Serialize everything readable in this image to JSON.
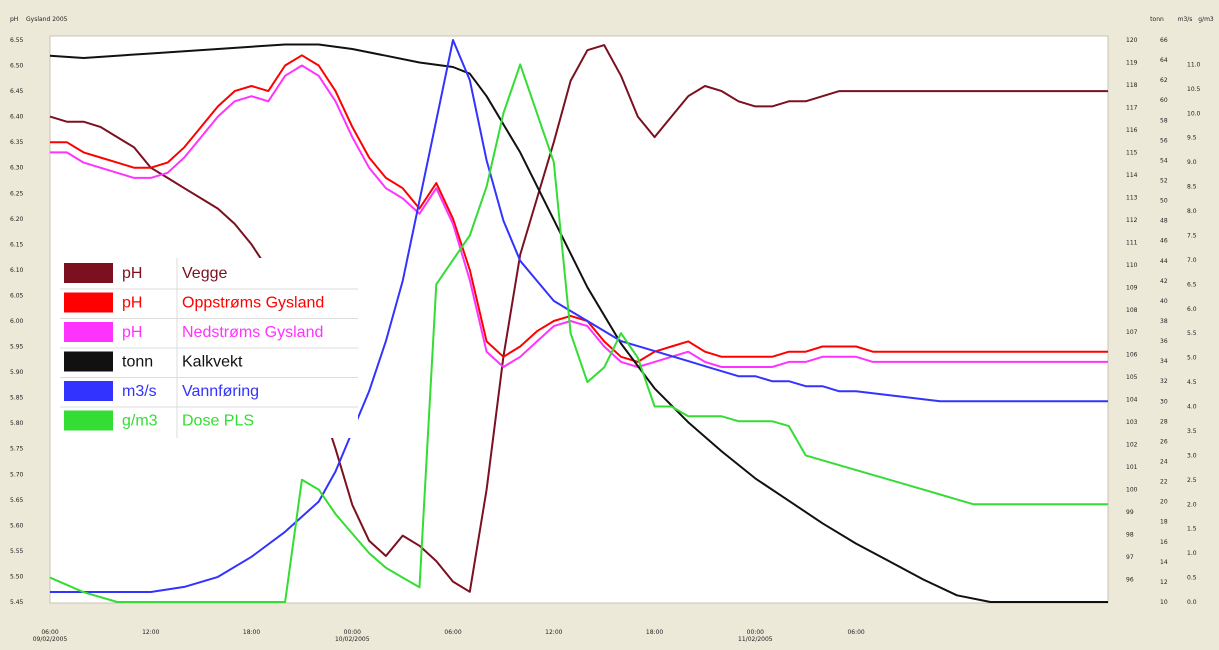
{
  "chart_data": {
    "type": "line",
    "title": "Gysland 2005",
    "left_axis": {
      "unit": "pH",
      "range": [
        5.45,
        6.55
      ],
      "ticks": [
        "6.55",
        "6.50",
        "6.45",
        "6.40",
        "6.35",
        "6.30",
        "6.25",
        "6.20",
        "6.15",
        "6.10",
        "6.05",
        "6.00",
        "5.95",
        "5.90",
        "5.85",
        "5.80",
        "5.75",
        "5.70",
        "5.65",
        "5.60",
        "5.55",
        "5.50",
        "5.45"
      ]
    },
    "right_axes": [
      {
        "unit": "tonn",
        "range": [
          95,
          120
        ],
        "ticks": [
          "120",
          "119",
          "118",
          "117",
          "116",
          "115",
          "114",
          "113",
          "112",
          "111",
          "110",
          "109",
          "108",
          "107",
          "106",
          "105",
          "104",
          "103",
          "102",
          "101",
          "100",
          "99",
          "98",
          "97",
          "96"
        ]
      },
      {
        "unit": "m3/s",
        "range": [
          10,
          66
        ],
        "ticks": [
          "66",
          "64",
          "62",
          "60",
          "58",
          "56",
          "54",
          "52",
          "50",
          "48",
          "46",
          "44",
          "42",
          "40",
          "38",
          "36",
          "34",
          "32",
          "30",
          "28",
          "26",
          "24",
          "22",
          "20",
          "18",
          "16",
          "14",
          "12",
          "10"
        ]
      },
      {
        "unit": "g/m3",
        "range": [
          0,
          11.5
        ],
        "ticks": [
          "11.0",
          "10.5",
          "10.0",
          "9.5",
          "9.0",
          "8.5",
          "8.0",
          "7.5",
          "7.0",
          "6.5",
          "6.0",
          "5.5",
          "5.0",
          "4.5",
          "4.0",
          "3.5",
          "3.0",
          "2.5",
          "2.0",
          "1.5",
          "1.0",
          "0.5",
          "0.0"
        ]
      }
    ],
    "x_axis": {
      "range_hours": [
        0,
        63
      ],
      "ticks": [
        {
          "h": 0,
          "lines": [
            "06:00",
            "09/02/2005"
          ]
        },
        {
          "h": 6,
          "lines": [
            "12:00"
          ]
        },
        {
          "h": 12,
          "lines": [
            "18:00"
          ]
        },
        {
          "h": 18,
          "lines": [
            "00:00",
            "10/02/2005"
          ]
        },
        {
          "h": 24,
          "lines": [
            "06:00"
          ]
        },
        {
          "h": 30,
          "lines": [
            "12:00"
          ]
        },
        {
          "h": 36,
          "lines": [
            "18:00"
          ]
        },
        {
          "h": 42,
          "lines": [
            "00:00",
            "11/02/2005"
          ]
        },
        {
          "h": 48,
          "lines": [
            "06:00"
          ]
        }
      ]
    },
    "series": [
      {
        "unit": "pH",
        "name": "Vegge",
        "color": "#7b1020",
        "axis": "pH",
        "x": [
          0,
          1,
          2,
          3,
          4,
          5,
          6,
          7,
          8,
          9,
          10,
          11,
          12,
          13,
          14,
          15,
          16,
          17,
          18,
          19,
          20,
          21,
          22,
          23,
          24,
          25,
          26,
          27,
          28,
          29,
          30,
          31,
          32,
          33,
          34,
          35,
          36,
          37,
          38,
          39,
          40,
          41,
          42,
          43,
          44,
          45,
          46,
          47,
          48,
          49,
          50,
          51,
          52,
          53,
          54,
          55,
          56,
          57,
          58,
          59,
          60,
          61,
          62,
          63
        ],
        "y": [
          6.4,
          6.39,
          6.39,
          6.38,
          6.36,
          6.34,
          6.3,
          6.28,
          6.26,
          6.24,
          6.22,
          6.19,
          6.15,
          6.1,
          6.03,
          5.94,
          5.85,
          5.75,
          5.64,
          5.57,
          5.54,
          5.58,
          5.56,
          5.53,
          5.49,
          5.47,
          5.67,
          5.93,
          6.13,
          6.24,
          6.35,
          6.47,
          6.53,
          6.54,
          6.48,
          6.4,
          6.36,
          6.4,
          6.44,
          6.46,
          6.45,
          6.43,
          6.42,
          6.42,
          6.43,
          6.43,
          6.44,
          6.45,
          6.45,
          6.45,
          6.45,
          6.45,
          6.45,
          6.45,
          6.45,
          6.45,
          6.45,
          6.45,
          6.45,
          6.45,
          6.45,
          6.45,
          6.45,
          6.45
        ]
      },
      {
        "unit": "pH",
        "name": "Oppstrøms Gysland",
        "color": "#ff0000",
        "axis": "pH",
        "x": [
          0,
          1,
          2,
          3,
          4,
          5,
          6,
          7,
          8,
          9,
          10,
          11,
          12,
          13,
          14,
          15,
          16,
          17,
          18,
          19,
          20,
          21,
          22,
          23,
          24,
          25,
          26,
          27,
          28,
          29,
          30,
          31,
          32,
          33,
          34,
          35,
          36,
          37,
          38,
          39,
          40,
          41,
          42,
          43,
          44,
          45,
          46,
          47,
          48,
          49,
          50,
          51,
          52,
          53,
          54,
          55,
          56,
          57,
          58,
          59,
          60,
          61,
          62,
          63
        ],
        "y": [
          6.35,
          6.35,
          6.33,
          6.32,
          6.31,
          6.3,
          6.3,
          6.31,
          6.34,
          6.38,
          6.42,
          6.45,
          6.46,
          6.45,
          6.5,
          6.52,
          6.5,
          6.45,
          6.38,
          6.32,
          6.28,
          6.26,
          6.22,
          6.27,
          6.2,
          6.1,
          5.96,
          5.93,
          5.95,
          5.98,
          6.0,
          6.01,
          6.0,
          5.96,
          5.93,
          5.92,
          5.94,
          5.95,
          5.96,
          5.94,
          5.93,
          5.93,
          5.93,
          5.93,
          5.94,
          5.94,
          5.95,
          5.95,
          5.95,
          5.94,
          5.94,
          5.94,
          5.94,
          5.94,
          5.94,
          5.94,
          5.94,
          5.94,
          5.94,
          5.94,
          5.94,
          5.94,
          5.94,
          5.94
        ]
      },
      {
        "unit": "pH",
        "name": "Nedstrøms Gysland",
        "color": "#ff33ff",
        "axis": "pH",
        "x": [
          0,
          1,
          2,
          3,
          4,
          5,
          6,
          7,
          8,
          9,
          10,
          11,
          12,
          13,
          14,
          15,
          16,
          17,
          18,
          19,
          20,
          21,
          22,
          23,
          24,
          25,
          26,
          27,
          28,
          29,
          30,
          31,
          32,
          33,
          34,
          35,
          36,
          37,
          38,
          39,
          40,
          41,
          42,
          43,
          44,
          45,
          46,
          47,
          48,
          49,
          50,
          51,
          52,
          53,
          54,
          55,
          56,
          57,
          58,
          59,
          60,
          61,
          62,
          63
        ],
        "y": [
          6.33,
          6.33,
          6.31,
          6.3,
          6.29,
          6.28,
          6.28,
          6.29,
          6.32,
          6.36,
          6.4,
          6.43,
          6.44,
          6.43,
          6.48,
          6.5,
          6.48,
          6.43,
          6.36,
          6.3,
          6.26,
          6.24,
          6.21,
          6.26,
          6.19,
          6.08,
          5.94,
          5.91,
          5.93,
          5.96,
          5.99,
          6.0,
          5.99,
          5.95,
          5.92,
          5.91,
          5.92,
          5.93,
          5.94,
          5.92,
          5.91,
          5.91,
          5.91,
          5.91,
          5.92,
          5.92,
          5.93,
          5.93,
          5.93,
          5.92,
          5.92,
          5.92,
          5.92,
          5.92,
          5.92,
          5.92,
          5.92,
          5.92,
          5.92,
          5.92,
          5.92,
          5.92,
          5.92,
          5.92
        ]
      },
      {
        "unit": "tonn",
        "name": "Kalkvekt",
        "color": "#111111",
        "axis": "tonn",
        "x": [
          0,
          2,
          4,
          6,
          8,
          10,
          12,
          14,
          16,
          18,
          20,
          22,
          24,
          25,
          26,
          28,
          30,
          32,
          34,
          36,
          38,
          40,
          42,
          44,
          46,
          48,
          50,
          52,
          54,
          56,
          58,
          60,
          62,
          63
        ],
        "y": [
          119.3,
          119.2,
          119.3,
          119.4,
          119.5,
          119.6,
          119.7,
          119.8,
          119.8,
          119.6,
          119.3,
          119.0,
          118.8,
          118.5,
          117.5,
          115.0,
          112.0,
          109.0,
          106.5,
          104.5,
          103.0,
          101.7,
          100.5,
          99.5,
          98.5,
          97.6,
          96.8,
          96.0,
          95.3,
          95.0,
          95.0,
          95.0,
          95.0,
          95.0
        ]
      },
      {
        "unit": "m3/s",
        "name": "Vannføring",
        "color": "#3333ff",
        "axis": "m3/s",
        "x": [
          0,
          2,
          4,
          6,
          8,
          10,
          12,
          14,
          16,
          17,
          18,
          19,
          20,
          21,
          22,
          23,
          24,
          25,
          26,
          27,
          28,
          29,
          30,
          31,
          32,
          33,
          34,
          35,
          36,
          37,
          38,
          39,
          40,
          41,
          42,
          43,
          44,
          45,
          46,
          47,
          48,
          49,
          50,
          51,
          52,
          53,
          54,
          55,
          56,
          57,
          58,
          59,
          60,
          61,
          62,
          63
        ],
        "y": [
          11.0,
          11.0,
          11.0,
          11.0,
          11.5,
          12.5,
          14.5,
          17.0,
          20.0,
          23.0,
          27.0,
          31.0,
          36.0,
          42.0,
          50.0,
          58.0,
          66.0,
          62.0,
          54.0,
          48.0,
          44.0,
          42.0,
          40.0,
          39.0,
          38.0,
          37.0,
          36.0,
          35.5,
          35.0,
          34.5,
          34.0,
          33.5,
          33.0,
          32.5,
          32.5,
          32.0,
          32.0,
          31.5,
          31.5,
          31.0,
          31.0,
          30.8,
          30.6,
          30.4,
          30.2,
          30.0,
          30.0,
          30.0,
          30.0,
          30.0,
          30.0,
          30.0,
          30.0,
          30.0,
          30.0,
          30.0
        ]
      },
      {
        "unit": "g/m3",
        "name": "Dose PLS",
        "color": "#33dd33",
        "axis": "g/m3",
        "x": [
          0,
          2,
          4,
          6,
          8,
          10,
          12,
          14,
          15,
          16,
          17,
          18,
          19,
          20,
          21,
          22,
          23,
          24,
          25,
          26,
          27,
          28,
          29,
          30,
          31,
          32,
          33,
          34,
          35,
          36,
          37,
          38,
          39,
          40,
          41,
          42,
          43,
          44,
          45,
          46,
          47,
          48,
          49,
          50,
          51,
          52,
          53,
          54,
          55,
          56,
          57,
          58,
          59,
          60,
          61,
          62,
          63
        ],
        "y": [
          0.5,
          0.2,
          0.0,
          0.0,
          0.0,
          0.0,
          0.0,
          0.0,
          2.5,
          2.3,
          1.8,
          1.4,
          1.0,
          0.7,
          0.5,
          0.3,
          6.5,
          7.0,
          7.5,
          8.5,
          10.0,
          11.0,
          10.0,
          9.0,
          5.5,
          4.5,
          4.8,
          5.5,
          5.0,
          4.0,
          4.0,
          3.8,
          3.8,
          3.8,
          3.7,
          3.7,
          3.7,
          3.6,
          3.0,
          2.9,
          2.8,
          2.7,
          2.6,
          2.5,
          2.4,
          2.3,
          2.2,
          2.1,
          2.0,
          2.0,
          2.0,
          2.0,
          2.0,
          2.0,
          2.0,
          2.0,
          2.0
        ]
      }
    ],
    "legend": [
      {
        "unit": "pH",
        "name": "Vegge",
        "color": "#7b1020"
      },
      {
        "unit": "pH",
        "name": "Oppstrøms Gysland",
        "color": "#ff0000"
      },
      {
        "unit": "pH",
        "name": "Nedstrøms Gysland",
        "color": "#ff33ff"
      },
      {
        "unit": "tonn",
        "name": "Kalkvekt",
        "color": "#111111"
      },
      {
        "unit": "m3/s",
        "name": "Vannføring",
        "color": "#3333ff"
      },
      {
        "unit": "g/m3",
        "name": "Dose PLS",
        "color": "#33dd33"
      }
    ],
    "legend_position": "middle-left",
    "grid": false
  }
}
